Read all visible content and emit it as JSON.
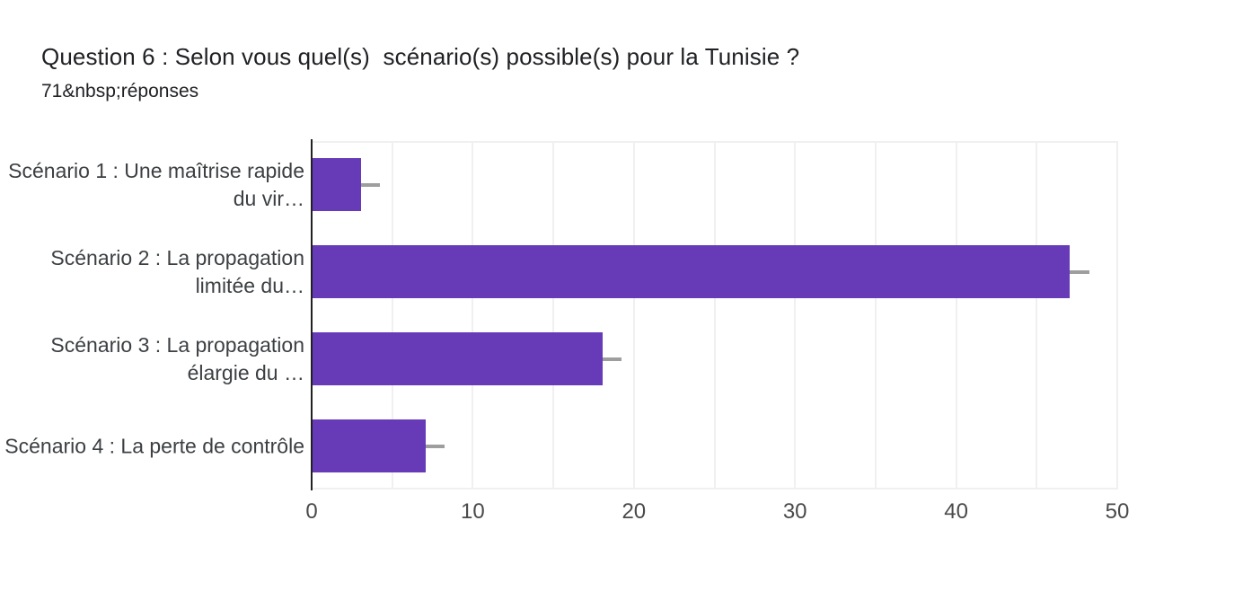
{
  "header": {
    "title": "Question 6 : Selon vous quel(s)  scénario(s) possible(s) pour la Tunisie ?",
    "subtitle": "71&nbsp;réponses"
  },
  "chart_data": {
    "type": "bar",
    "orientation": "horizontal",
    "title": "Question 6 : Selon vous quel(s)  scénario(s) possible(s) pour la Tunisie ?",
    "subtitle": "71&nbsp;réponses",
    "categories": [
      "Scénario 1 : Une maîtrise rapide du vir…",
      "Scénario 2 : La propagation limitée du…",
      "Scénario 3 : La propagation élargie du …",
      "Scénario 4 : La perte de contrôle"
    ],
    "category_label_lines": [
      [
        "Scénario 1 : Une maîtrise rapide",
        "du vir…"
      ],
      [
        "Scénario 2 : La propagation",
        "limitée du…"
      ],
      [
        "Scénario 3 : La propagation",
        "élargie du …"
      ],
      [
        "Scénario 4 : La perte de contrôle"
      ]
    ],
    "values": [
      3,
      47,
      18,
      7
    ],
    "whisker_ends": [
      4.2,
      48.2,
      19.2,
      8.2
    ],
    "xlim": [
      0,
      50
    ],
    "x_ticks": [
      0,
      10,
      20,
      30,
      40,
      50
    ],
    "gridline_step": 5,
    "grid": true,
    "legend": "none",
    "colors": {
      "bar": "#673ab7",
      "whisker": "#9e9e9e",
      "gridline": "#f0f0f0",
      "axis_line": "#212121",
      "title_text": "#202124",
      "category_text": "#3c4043",
      "tick_text": "#4a4a4a",
      "background": "#ffffff"
    }
  }
}
